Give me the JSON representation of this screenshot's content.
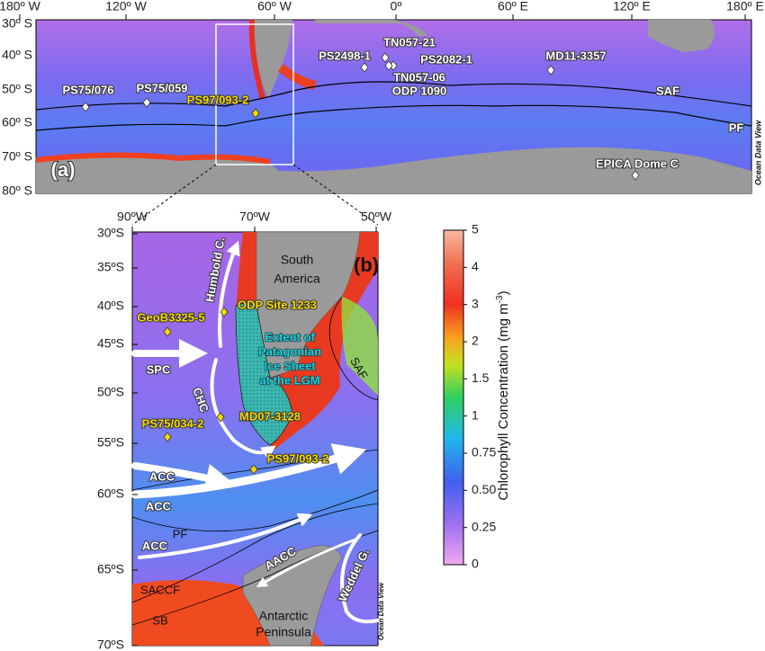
{
  "panel_a": {
    "label": "(a)",
    "lon_labels": [
      "180º W",
      "120º W",
      "60º W",
      "0º",
      "60º E",
      "120º E",
      "180º E"
    ],
    "lat_labels": [
      "30º S",
      "40º S",
      "50º S",
      "60º S",
      "70º S",
      "80º S"
    ],
    "stations": [
      "PS75/076",
      "PS75/059",
      "PS97/093-2",
      "PS2498-1",
      "TN057-21",
      "PS2082-1",
      "TN057-06",
      "ODP 1090",
      "MD11-3357",
      "EPICA Dome C"
    ],
    "fronts": [
      "SAF",
      "PF"
    ],
    "watermark": "Ocean Data View"
  },
  "panel_b": {
    "label": "(b)",
    "lon_labels": [
      "90ºW",
      "70ºW",
      "50ºW"
    ],
    "lat_labels": [
      "30ºS",
      "35ºS",
      "40ºS",
      "45ºS",
      "50ºS",
      "55ºS",
      "60ºS",
      "65ºS",
      "70ºS"
    ],
    "sites": [
      "ODP Site 1233",
      "GeoB3325-5",
      "MD07-3128",
      "PS75/034-2",
      "PS97/093-2"
    ],
    "ice_sheet": [
      "Extent of",
      "Patagonian",
      "Ice Sheet",
      "at the LGM"
    ],
    "land": [
      "South",
      "America",
      "Antarctic",
      "Peninsula"
    ],
    "currents": [
      "Humbold C.",
      "SPC",
      "CHC",
      "ACC",
      "ACC",
      "ACC",
      "AACC",
      "Weddel G."
    ],
    "fronts": [
      "SAF",
      "PF",
      "SACCF",
      "SB"
    ],
    "watermark": "Ocean Data View"
  },
  "colorbar": {
    "title": "Chlorophyll Concentration (mg m",
    "title_sup": "-3",
    "title_end": ")",
    "ticks": [
      "5",
      "4",
      "3",
      "2",
      "1.5",
      "1",
      "0.75",
      "0.50",
      "0.25",
      "0"
    ]
  }
}
